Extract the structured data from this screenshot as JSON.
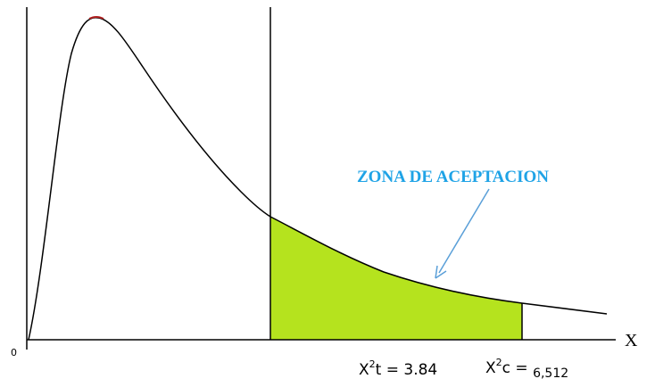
{
  "axis": {
    "origin": "0",
    "x_label": "X"
  },
  "labels": {
    "critical_table": {
      "base": "X",
      "sup": "2",
      "rest": "t = 3.84"
    },
    "critical_calc": {
      "base": "X",
      "sup": "2",
      "rest": "c = ",
      "value": "6,512"
    },
    "zone": "ZONA DE ACEPTACION"
  }
}
